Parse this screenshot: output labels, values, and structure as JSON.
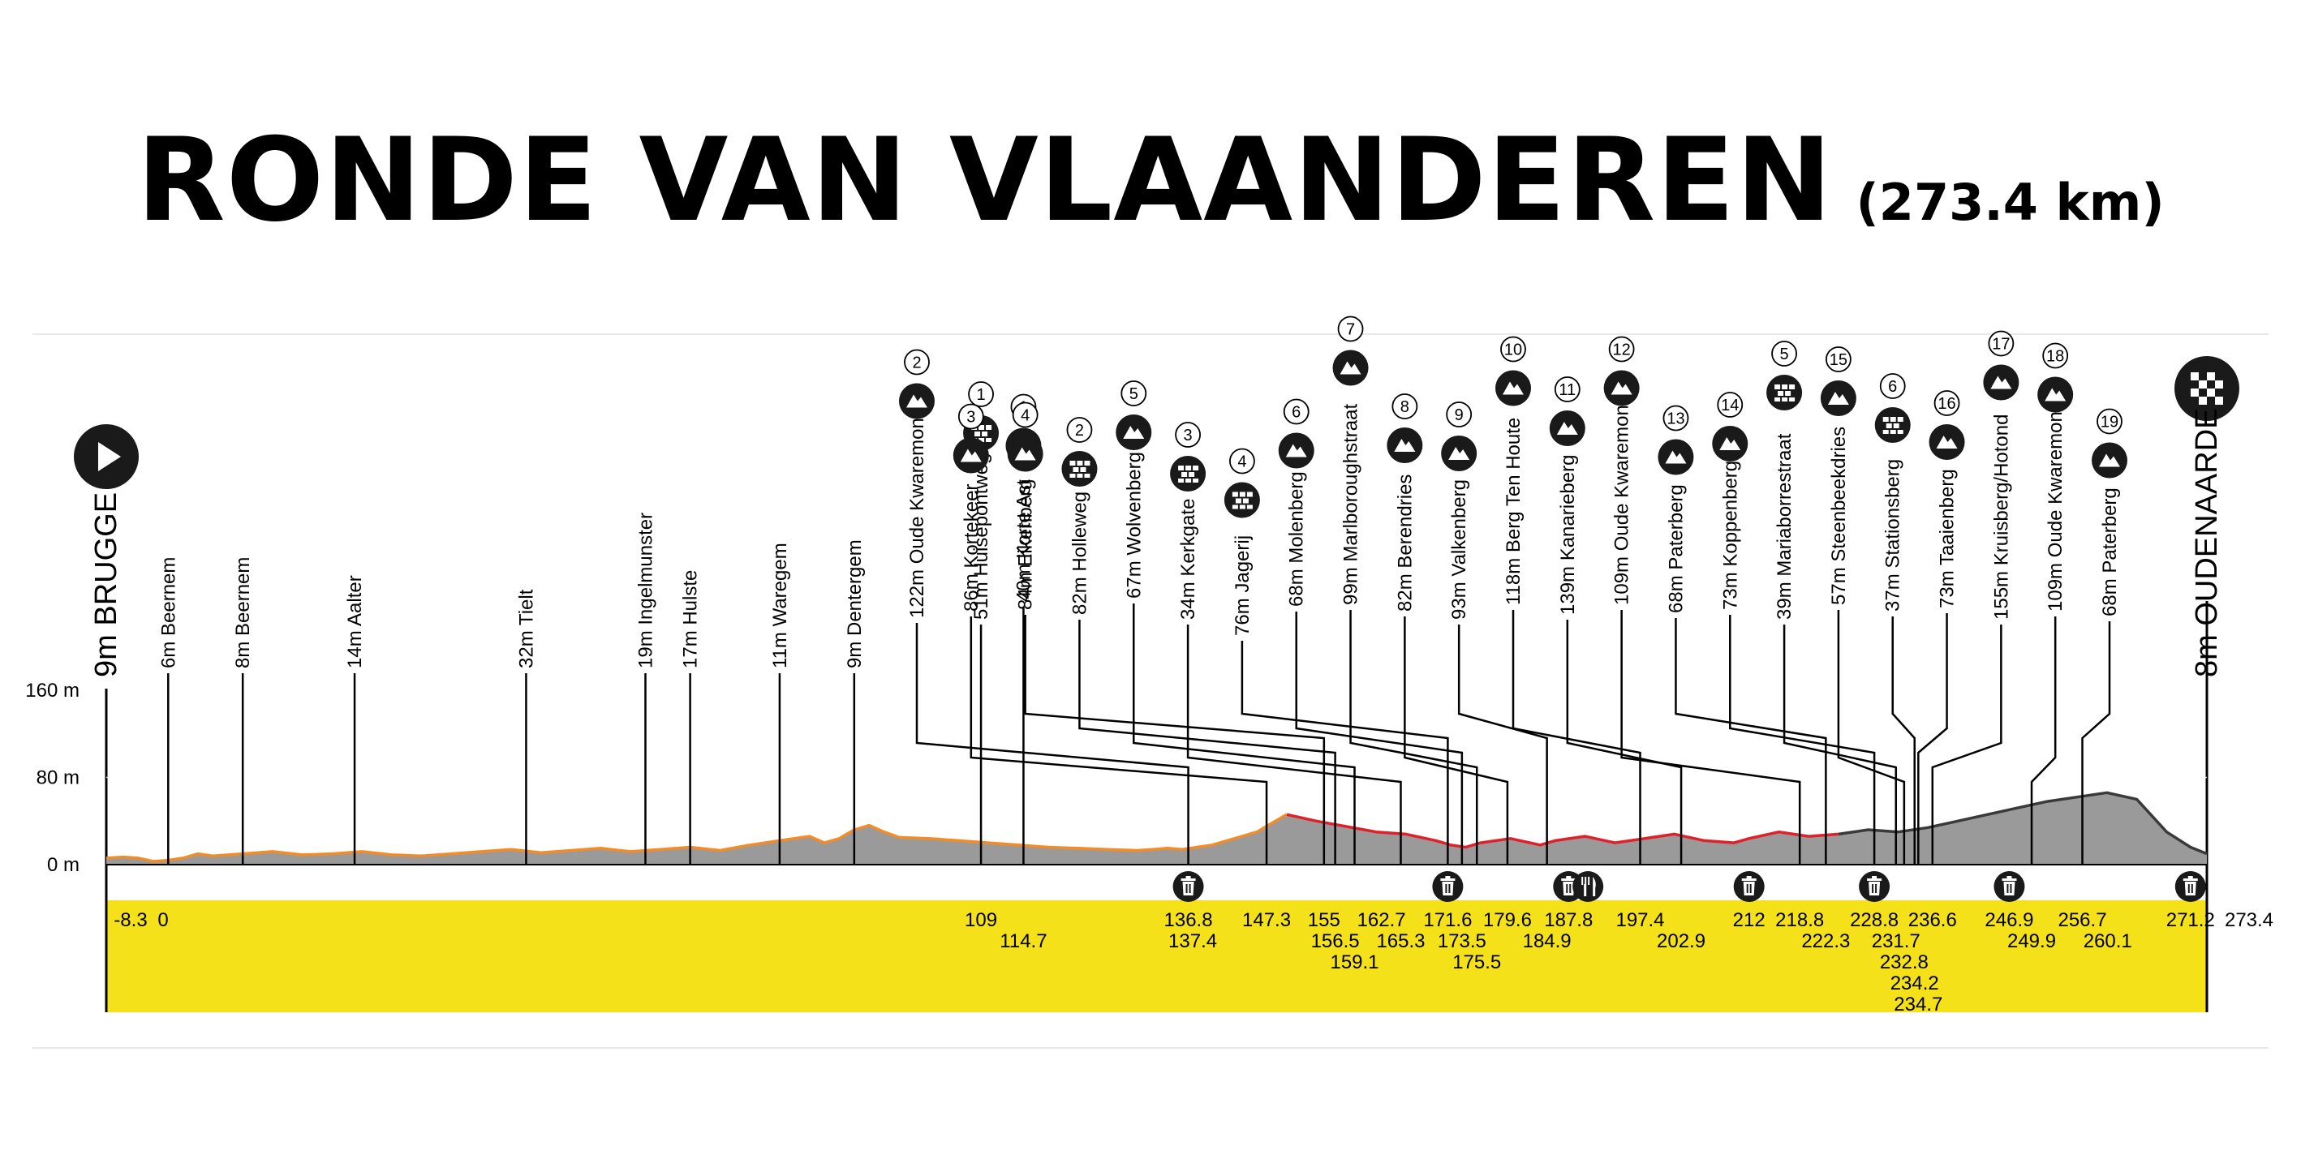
{
  "header": {
    "title": "RONDE VAN VLAANDEREN",
    "distance": "(273.4 km)"
  },
  "colors": {
    "flat_line": "#f28c28",
    "climb_line": "#e0202a",
    "final_line": "#3a3a3a",
    "profile_fill": "#9a9a9a",
    "km_band": "#f5e11a",
    "icon_bg": "#1a1a1a"
  },
  "chart_data": {
    "type": "area",
    "xlim": [
      -8.3,
      273.4
    ],
    "ylim": [
      0,
      160
    ],
    "y_ticks": [
      0,
      80,
      160
    ],
    "y_tick_labels": [
      "0 m",
      "80 m",
      "160 m"
    ],
    "start": {
      "label": "9m BRUGGE",
      "km": -8.3
    },
    "finish": {
      "label": "8m OUDENAARDE",
      "km": 273.4
    },
    "profile": [
      [
        -8.3,
        6
      ],
      [
        -6,
        7
      ],
      [
        -4,
        6
      ],
      [
        -2,
        3
      ],
      [
        0,
        4
      ],
      [
        2,
        6
      ],
      [
        4,
        10
      ],
      [
        6,
        8
      ],
      [
        10,
        10
      ],
      [
        14,
        12
      ],
      [
        18,
        9
      ],
      [
        22,
        10
      ],
      [
        26,
        12
      ],
      [
        30,
        9
      ],
      [
        34,
        8
      ],
      [
        38,
        10
      ],
      [
        42,
        12
      ],
      [
        46,
        14
      ],
      [
        50,
        11
      ],
      [
        54,
        13
      ],
      [
        58,
        15
      ],
      [
        62,
        12
      ],
      [
        66,
        14
      ],
      [
        70,
        16
      ],
      [
        74,
        13
      ],
      [
        78,
        18
      ],
      [
        82,
        22
      ],
      [
        86,
        26
      ],
      [
        88,
        20
      ],
      [
        90,
        24
      ],
      [
        92,
        32
      ],
      [
        94,
        36
      ],
      [
        96,
        30
      ],
      [
        98,
        25
      ],
      [
        102,
        24
      ],
      [
        106,
        22
      ],
      [
        110,
        20
      ],
      [
        114,
        18
      ],
      [
        118,
        16
      ],
      [
        122,
        15
      ],
      [
        126,
        14
      ],
      [
        130,
        13
      ],
      [
        132,
        14
      ],
      [
        134,
        15
      ],
      [
        136,
        14
      ],
      [
        138,
        16
      ],
      [
        140,
        18
      ],
      [
        142,
        22
      ],
      [
        146,
        30
      ],
      [
        148,
        38
      ],
      [
        150,
        46
      ],
      [
        154,
        40
      ],
      [
        158,
        35
      ],
      [
        162,
        30
      ],
      [
        166,
        28
      ],
      [
        170,
        22
      ],
      [
        172,
        18
      ],
      [
        174,
        16
      ],
      [
        176,
        20
      ],
      [
        180,
        24
      ],
      [
        184,
        18
      ],
      [
        186,
        22
      ],
      [
        190,
        26
      ],
      [
        194,
        20
      ],
      [
        198,
        24
      ],
      [
        202,
        28
      ],
      [
        206,
        22
      ],
      [
        210,
        20
      ],
      [
        212,
        24
      ],
      [
        216,
        30
      ],
      [
        220,
        26
      ],
      [
        224,
        28
      ],
      [
        228,
        32
      ],
      [
        232,
        30
      ],
      [
        236,
        34
      ],
      [
        240,
        40
      ],
      [
        244,
        46
      ],
      [
        248,
        52
      ],
      [
        252,
        58
      ],
      [
        256,
        62
      ],
      [
        260,
        66
      ],
      [
        264,
        60
      ],
      [
        268,
        30
      ],
      [
        271.2,
        16
      ],
      [
        273.4,
        10
      ]
    ],
    "km_markers": [
      {
        "km": -8.3,
        "label": "-8.3",
        "row": 0
      },
      {
        "km": 0,
        "label": "0",
        "row": 0
      },
      {
        "km": 109,
        "label": "109",
        "row": 0
      },
      {
        "km": 114.7,
        "label": "114.7",
        "row": 1
      },
      {
        "km": 136.8,
        "label": "136.8",
        "row": 0
      },
      {
        "km": 137.4,
        "label": "137.4",
        "row": 1
      },
      {
        "km": 147.3,
        "label": "147.3",
        "row": 0
      },
      {
        "km": 155,
        "label": "155",
        "row": 0
      },
      {
        "km": 156.5,
        "label": "156.5",
        "row": 1
      },
      {
        "km": 159.1,
        "label": "159.1",
        "row": 2
      },
      {
        "km": 162.7,
        "label": "162.7",
        "row": 0
      },
      {
        "km": 165.3,
        "label": "165.3",
        "row": 1
      },
      {
        "km": 171.6,
        "label": "171.6",
        "row": 0
      },
      {
        "km": 173.5,
        "label": "173.5",
        "row": 1
      },
      {
        "km": 175.5,
        "label": "175.5",
        "row": 2
      },
      {
        "km": 179.6,
        "label": "179.6",
        "row": 0
      },
      {
        "km": 184.9,
        "label": "184.9",
        "row": 1
      },
      {
        "km": 187.8,
        "label": "187.8",
        "row": 0
      },
      {
        "km": 197.4,
        "label": "197.4",
        "row": 0
      },
      {
        "km": 202.9,
        "label": "202.9",
        "row": 1
      },
      {
        "km": 212,
        "label": "212",
        "row": 0
      },
      {
        "km": 218.8,
        "label": "218.8",
        "row": 0
      },
      {
        "km": 222.3,
        "label": "222.3",
        "row": 1
      },
      {
        "km": 228.8,
        "label": "228.8",
        "row": 0
      },
      {
        "km": 231.7,
        "label": "231.7",
        "row": 1
      },
      {
        "km": 232.8,
        "label": "232.8",
        "row": 2
      },
      {
        "km": 234.2,
        "label": "234.2",
        "row": 3
      },
      {
        "km": 234.7,
        "label": "234.7",
        "row": 4
      },
      {
        "km": 236.6,
        "label": "236.6",
        "row": 0
      },
      {
        "km": 246.9,
        "label": "246.9",
        "row": 0
      },
      {
        "km": 249.9,
        "label": "249.9",
        "row": 1
      },
      {
        "km": 256.7,
        "label": "256.7",
        "row": 0
      },
      {
        "km": 260.1,
        "label": "260.1",
        "row": 1
      },
      {
        "km": 271.2,
        "label": "271.2",
        "row": 0
      },
      {
        "km": 273.4,
        "label": "273.4",
        "row": 0
      }
    ],
    "waypoints": [
      {
        "km": 0,
        "label": "6m Beernem"
      },
      {
        "km": 10,
        "label": "8m Beernem"
      },
      {
        "km": 25,
        "label": "14m Aalter"
      },
      {
        "km": 48,
        "label": "32m Tielt"
      },
      {
        "km": 64,
        "label": "19m Ingelmunster"
      },
      {
        "km": 70,
        "label": "17m Hulste"
      },
      {
        "km": 82,
        "label": "11m Waregem"
      },
      {
        "km": 92,
        "label": "9m Dentergem"
      }
    ],
    "sectors": [
      {
        "km": 109,
        "label": "51m Huisepontweg",
        "type": "cobble",
        "num": "1"
      },
      {
        "km": 114.7,
        "label": "40m Korte Ast",
        "type": "climb",
        "num": "1"
      },
      {
        "km": 136.8,
        "label": "122m Oude Kwaremont",
        "type": "climb",
        "num": "2"
      },
      {
        "km": 147.3,
        "label": "86m Kortekeer",
        "type": "climb",
        "num": "3"
      },
      {
        "km": 155,
        "label": "84m Eikenberg",
        "type": "climb",
        "num": "4"
      },
      {
        "km": 156.5,
        "label": "82m Holleweg",
        "type": "cobble",
        "num": "2"
      },
      {
        "km": 159.1,
        "label": "67m Wolvenberg",
        "type": "climb",
        "num": "5"
      },
      {
        "km": 165.3,
        "label": "34m Kerkgate",
        "type": "cobble",
        "num": "3"
      },
      {
        "km": 171.6,
        "label": "76m Jagerij",
        "type": "cobble",
        "num": "4"
      },
      {
        "km": 173.5,
        "label": "68m Molenberg",
        "type": "climb",
        "num": "6"
      },
      {
        "km": 175.5,
        "label": "99m Marlboroughstraat",
        "type": "climb",
        "num": "7"
      },
      {
        "km": 179.6,
        "label": "82m Berendries",
        "type": "climb",
        "num": "8"
      },
      {
        "km": 184.9,
        "label": "93m Valkenberg",
        "type": "climb",
        "num": "9"
      },
      {
        "km": 197.4,
        "label": "118m Berg Ten Houte",
        "type": "climb",
        "num": "10"
      },
      {
        "km": 202.9,
        "label": "139m Kanarieberg",
        "type": "climb",
        "num": "11"
      },
      {
        "km": 218.8,
        "label": "109m Oude Kwaremont",
        "type": "climb",
        "num": "12"
      },
      {
        "km": 222.3,
        "label": "68m Paterberg",
        "type": "climb",
        "num": "13"
      },
      {
        "km": 228.8,
        "label": "73m Koppenberg",
        "type": "climb",
        "num": "14"
      },
      {
        "km": 231.7,
        "label": "39m Mariaborrestraat",
        "type": "cobble",
        "num": "5"
      },
      {
        "km": 232.8,
        "label": "57m Steenbeekdries",
        "type": "climb",
        "num": "15"
      },
      {
        "km": 234.2,
        "label": "37m Stationsberg",
        "type": "cobble",
        "num": "6"
      },
      {
        "km": 234.7,
        "label": "73m Taaienberg",
        "type": "climb",
        "num": "16"
      },
      {
        "km": 236.6,
        "label": "155m Kruisberg/Hotond",
        "type": "climb",
        "num": "17"
      },
      {
        "km": 249.9,
        "label": "109m Oude Kwaremont",
        "type": "climb",
        "num": "18"
      },
      {
        "km": 256.7,
        "label": "68m Paterberg",
        "type": "climb",
        "num": "19"
      }
    ],
    "feed_zones": [
      {
        "km": 136.8,
        "type": "bin"
      },
      {
        "km": 171.6,
        "type": "bin"
      },
      {
        "km": 187.8,
        "type": "bin"
      },
      {
        "km": 190.4,
        "type": "food"
      },
      {
        "km": 212,
        "type": "bin"
      },
      {
        "km": 228.8,
        "type": "bin"
      },
      {
        "km": 246.9,
        "type": "bin"
      },
      {
        "km": 271.2,
        "type": "bin"
      }
    ]
  }
}
